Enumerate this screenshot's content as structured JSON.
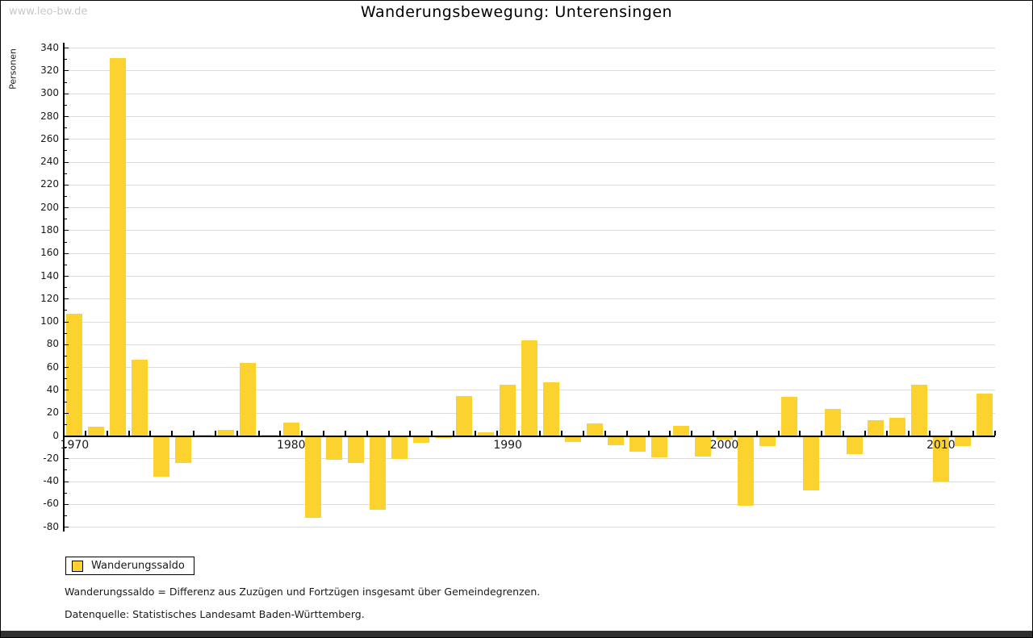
{
  "watermark": "www.leo-bw.de",
  "title": "Wanderungsbewegung: Unterensingen",
  "captions": {
    "note": "Wanderungssaldo = Differenz aus Zuzügen und Fortzügen insgesamt über Gemeindegrenzen.",
    "source": "Datenquelle: Statistisches Landesamt Baden-Württemberg."
  },
  "colors": {
    "bar": "#fcd22e",
    "grid": "#dcdcdc",
    "axis": "#000000",
    "watermark": "#c8c8c8",
    "footer_bar": "#303030"
  },
  "chart_data": {
    "type": "bar",
    "title": "Wanderungsbewegung: Unterensingen",
    "ylabel": "Personen",
    "xlabel": "",
    "ylim": [
      -80,
      340
    ],
    "ytick_interval": 20,
    "grid": true,
    "legend_position": "bottom-left",
    "xtick_labeled": [
      1970,
      1980,
      1990,
      2000,
      2010
    ],
    "categories": [
      1970,
      1971,
      1972,
      1973,
      1974,
      1975,
      1976,
      1977,
      1978,
      1979,
      1980,
      1981,
      1982,
      1983,
      1984,
      1985,
      1986,
      1987,
      1988,
      1989,
      1990,
      1991,
      1992,
      1993,
      1994,
      1995,
      1996,
      1997,
      1998,
      1999,
      2000,
      2001,
      2002,
      2003,
      2004,
      2005,
      2006,
      2007,
      2008,
      2009,
      2010,
      2011,
      2012
    ],
    "series": [
      {
        "name": "Wanderungssaldo",
        "color": "#fcd22e",
        "values": [
          107,
          8,
          331,
          67,
          -36,
          -24,
          1,
          5,
          64,
          1,
          12,
          -72,
          -21,
          -24,
          -65,
          -20,
          -6,
          -2,
          35,
          3,
          45,
          84,
          47,
          -5,
          11,
          -8,
          -14,
          -19,
          9,
          -18,
          -3,
          -61,
          -9,
          34,
          -48,
          24,
          -16,
          14,
          16,
          45,
          -40,
          -9,
          37
        ]
      }
    ]
  }
}
